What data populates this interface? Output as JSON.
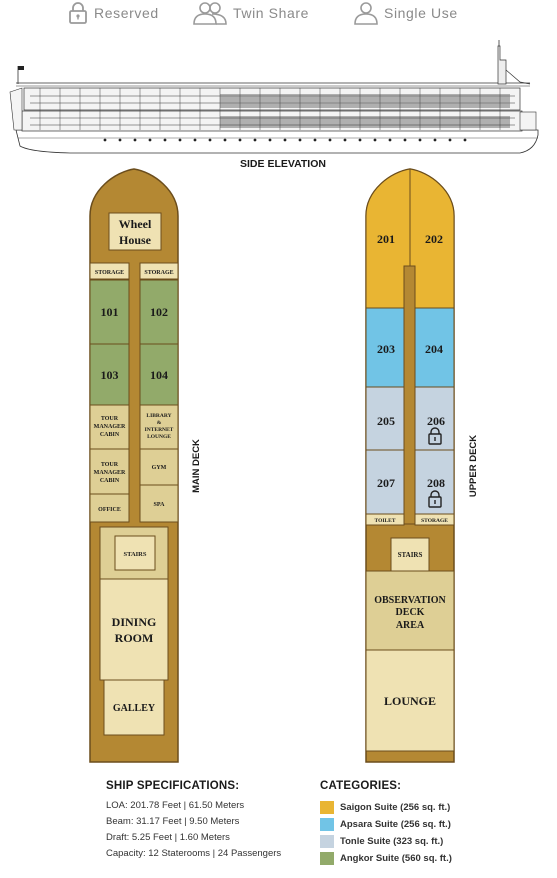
{
  "legend": {
    "reserved": "Reserved",
    "twin_share": "Twin Share",
    "single_use": "Single Use"
  },
  "elevation_label": "SIDE ELEVATION",
  "main_deck": {
    "label": "MAIN DECK",
    "wheel_house": [
      "Wheel",
      "House"
    ],
    "storage_left": "STORAGE",
    "storage_right": "STORAGE",
    "cabins": [
      "101",
      "102",
      "103",
      "104"
    ],
    "tour_manager_cabin_1": [
      "TOUR",
      "MANAGER",
      "CABIN"
    ],
    "tour_manager_cabin_2": [
      "TOUR",
      "MANAGER",
      "CABIN"
    ],
    "library": [
      "LIBRARY",
      "&",
      "INTERNET",
      "LOUNGE"
    ],
    "gym": "GYM",
    "office": "OFFICE",
    "spa": "SPA",
    "stairs": "STAIRS",
    "dining": [
      "DINING",
      "ROOM"
    ],
    "galley": "GALLEY"
  },
  "upper_deck": {
    "label": "UPPER DECK",
    "cabins": [
      "201",
      "202",
      "203",
      "204",
      "205",
      "206",
      "207",
      "208"
    ],
    "toilet": "TOILET",
    "storage": "STORAGE",
    "stairs": "STAIRS",
    "observation": [
      "OBSERVATION",
      "DECK",
      "AREA"
    ],
    "lounge": "LOUNGE"
  },
  "specs": {
    "title": "SHIP SPECIFICATIONS:",
    "loa": "LOA: 201.78 Feet | 61.50 Meters",
    "beam": "Beam: 31.17 Feet | 9.50 Meters",
    "draft": "Draft: 5.25 Feet | 1.60 Meters",
    "capacity": "Capacity: 12 Staterooms | 24 Passengers"
  },
  "categories": {
    "title": "CATEGORIES:",
    "items": [
      {
        "label": "Saigon Suite (256 sq. ft.)",
        "color": "#e9b533"
      },
      {
        "label": "Apsara Suite (256 sq. ft.)",
        "color": "#71c4e6"
      },
      {
        "label": "Tonle Suite (323 sq. ft.)",
        "color": "#c5d3e0"
      },
      {
        "label": "Angkor Suite (560 sq. ft.)",
        "color": "#92aa6a"
      }
    ]
  },
  "colors": {
    "hull": "#b48833",
    "hull_stroke": "#6b4d1c",
    "pale": "#efe2b3",
    "tan": "#decf95",
    "green": "#92aa6a",
    "gold": "#e9b533",
    "blue": "#71c4e6",
    "grey": "#c5d3e0"
  }
}
